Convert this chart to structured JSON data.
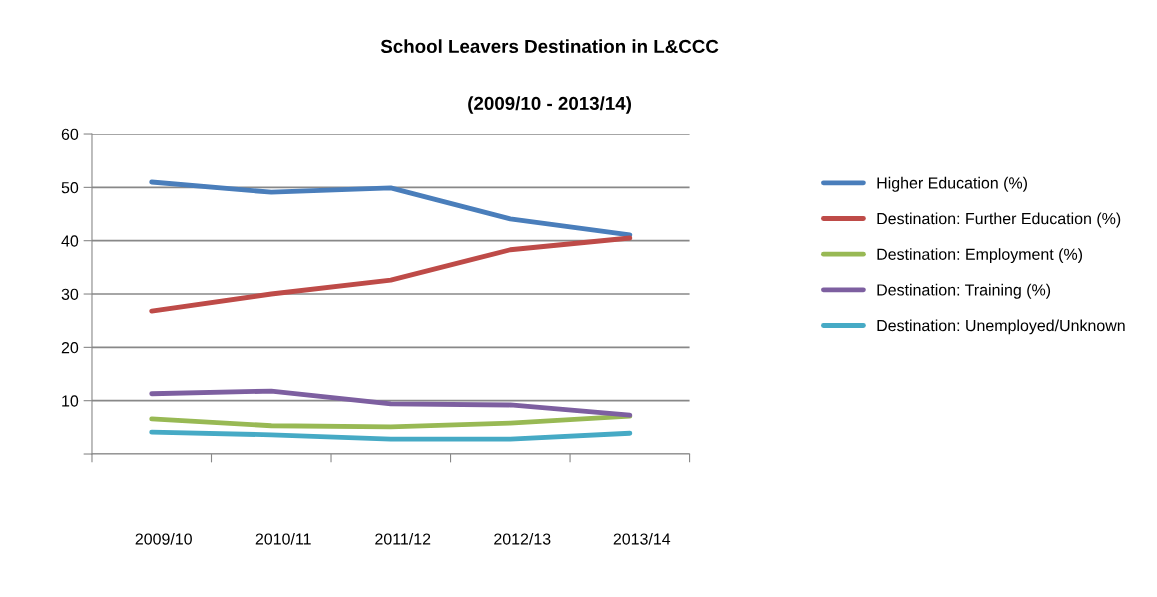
{
  "chart_data": {
    "type": "line",
    "title": "School Leavers Destination in L&CCC",
    "subtitle": "(2009/10 - 2013/14)",
    "categories": [
      "2009/10",
      "2010/11",
      "2011/12",
      "2012/13",
      "2013/14"
    ],
    "series": [
      {
        "name": "Higher Education (%)",
        "color": "#4a7ebb",
        "values": [
          51,
          49.1,
          49.9,
          44.1,
          41.1
        ]
      },
      {
        "name": "Destination: Further Education (%)",
        "color": "#be4b48",
        "values": [
          26.8,
          30,
          32.6,
          38.3,
          40.5
        ]
      },
      {
        "name": "Destination: Employment (%)",
        "color": "#98b954",
        "values": [
          6.6,
          5.3,
          5.1,
          5.8,
          7.1
        ]
      },
      {
        "name": "Destination: Training (%)",
        "color": "#7d5fa0",
        "values": [
          11.3,
          11.8,
          9.4,
          9.2,
          7.3
        ]
      },
      {
        "name": "Destination: Unemployed/Unknown",
        "color": "#46aac5",
        "values": [
          4.1,
          3.6,
          2.8,
          2.8,
          3.9
        ]
      }
    ],
    "ylim": [
      0,
      60
    ],
    "yticks": [
      {
        "value": 0,
        "label": null
      },
      10,
      20,
      30,
      40,
      50,
      60
    ],
    "grid": "y",
    "legend": "right",
    "marker": "none",
    "line_style": "solid"
  }
}
